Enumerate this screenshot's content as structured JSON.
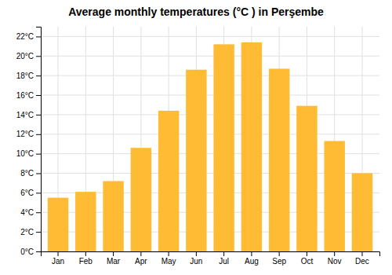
{
  "chart_data": {
    "type": "bar",
    "title": "Average monthly temperatures (°C ) in Perşembe",
    "categories": [
      "Jan",
      "Feb",
      "Mar",
      "Apr",
      "May",
      "Jun",
      "Jul",
      "Aug",
      "Sep",
      "Oct",
      "Nov",
      "Dec"
    ],
    "values": [
      5.5,
      6.1,
      7.2,
      10.6,
      14.4,
      18.6,
      21.2,
      21.4,
      18.7,
      14.9,
      11.3,
      8.0
    ],
    "color": "#FFBB33",
    "ylim": [
      0,
      23
    ],
    "yticks": [
      {
        "value": 0,
        "label": "0°C"
      },
      {
        "value": 2,
        "label": "2°C"
      },
      {
        "value": 4,
        "label": "4°C"
      },
      {
        "value": 6,
        "label": "6°C"
      },
      {
        "value": 8,
        "label": "8°C"
      },
      {
        "value": 10,
        "label": "10°C"
      },
      {
        "value": 12,
        "label": "12°C"
      },
      {
        "value": 14,
        "label": "14°C"
      },
      {
        "value": 16,
        "label": "16°C"
      },
      {
        "value": 18,
        "label": "18°C"
      },
      {
        "value": 20,
        "label": "20°C"
      },
      {
        "value": 22,
        "label": "22°C"
      }
    ],
    "grid": true
  }
}
